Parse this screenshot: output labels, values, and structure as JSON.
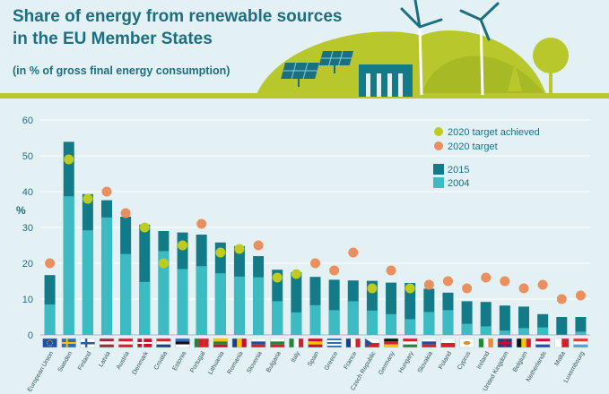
{
  "header": {
    "title_line1": "Share of energy from renewable sources",
    "title_line2": "in the EU Member States",
    "subtitle": "(in % of gross final energy consumption)"
  },
  "colors": {
    "bar_2015": "#137a87",
    "bar_2004": "#3cbcc2",
    "achieved": "#bfcb1d",
    "target": "#ec8f5e",
    "axis_text": "#1b6f80",
    "background": "#e3f1f4",
    "grid": "#ffffff"
  },
  "chart_data": {
    "type": "bar",
    "title": "Share of energy from renewable sources in the EU Member States",
    "subtitle": "(in % of gross final energy consumption)",
    "ylabel": "%",
    "xlabel": "",
    "ylim": [
      0,
      60
    ],
    "yticks": [
      0,
      10,
      20,
      30,
      40,
      50,
      60
    ],
    "grid": true,
    "legend_position": "top-right",
    "categories": [
      "European Union",
      "Sweden",
      "Finland",
      "Latvia",
      "Austria",
      "Denmark",
      "Croatia",
      "Estonia",
      "Portugal",
      "Lithuania",
      "Romania",
      "Slovenia",
      "Bulgaria",
      "Italy",
      "Spain",
      "Greece",
      "France",
      "Czech Republic",
      "Germany",
      "Hungary",
      "Slovakia",
      "Poland",
      "Cyprus",
      "Ireland",
      "United Kingdom",
      "Belgium",
      "Netherlands",
      "Malta",
      "Luxembourg"
    ],
    "series": [
      {
        "name": "2015",
        "values": [
          16.7,
          53.9,
          39.3,
          37.6,
          33.0,
          30.8,
          29.0,
          28.6,
          28.0,
          25.8,
          24.8,
          22.0,
          18.2,
          17.5,
          16.2,
          15.4,
          15.2,
          15.1,
          14.6,
          14.5,
          12.9,
          11.8,
          9.4,
          9.2,
          8.2,
          7.9,
          5.8,
          5.0,
          5.0
        ]
      },
      {
        "name": "2004",
        "values": [
          8.5,
          38.7,
          29.2,
          32.8,
          22.6,
          14.8,
          23.4,
          18.4,
          19.2,
          17.2,
          16.3,
          16.1,
          9.4,
          6.3,
          8.3,
          6.9,
          9.4,
          6.8,
          5.8,
          4.4,
          6.4,
          6.9,
          3.1,
          2.4,
          1.2,
          1.9,
          2.1,
          0.1,
          0.9
        ]
      },
      {
        "name": "2020 target achieved",
        "values": [
          null,
          49,
          38,
          null,
          null,
          30,
          20,
          25,
          null,
          23,
          24,
          null,
          16,
          17,
          null,
          null,
          null,
          13,
          null,
          13,
          null,
          null,
          null,
          null,
          null,
          null,
          null,
          null,
          null
        ]
      },
      {
        "name": "2020 target",
        "values": [
          20,
          null,
          null,
          40,
          34,
          null,
          null,
          null,
          31,
          null,
          null,
          25,
          null,
          null,
          20,
          18,
          23,
          null,
          18,
          null,
          14,
          15,
          13,
          16,
          15,
          13,
          14,
          10,
          11
        ]
      }
    ]
  },
  "flags": [
    {
      "name": "eu",
      "colors": [
        "#1f4fa0"
      ],
      "dir": "h"
    },
    {
      "name": "se",
      "colors": [
        "#2a6fb6"
      ],
      "dir": "h"
    },
    {
      "name": "fi",
      "colors": [
        "#ffffff"
      ],
      "dir": "h"
    },
    {
      "name": "lv",
      "colors": [
        "#9e2b38",
        "#ffffff",
        "#9e2b38"
      ],
      "dir": "h"
    },
    {
      "name": "at",
      "colors": [
        "#d81e2c",
        "#ffffff",
        "#d81e2c"
      ],
      "dir": "h"
    },
    {
      "name": "dk",
      "colors": [
        "#c8102e"
      ],
      "dir": "h"
    },
    {
      "name": "hr",
      "colors": [
        "#d8232a",
        "#ffffff",
        "#1f3c8a"
      ],
      "dir": "h"
    },
    {
      "name": "ee",
      "colors": [
        "#2a6fb6",
        "#111111",
        "#ffffff"
      ],
      "dir": "h"
    },
    {
      "name": "pt",
      "colors": [
        "#1a8a3a",
        "#d81e2c",
        "#d81e2c"
      ],
      "dir": "v"
    },
    {
      "name": "lt",
      "colors": [
        "#f7c400",
        "#1a8a3a",
        "#c8102e"
      ],
      "dir": "h"
    },
    {
      "name": "ro",
      "colors": [
        "#1f3c8a",
        "#f7c400",
        "#c8102e"
      ],
      "dir": "v"
    },
    {
      "name": "si",
      "colors": [
        "#ffffff",
        "#1f4fa0",
        "#d81e2c"
      ],
      "dir": "h"
    },
    {
      "name": "bg",
      "colors": [
        "#ffffff",
        "#1a8a3a",
        "#d81e2c"
      ],
      "dir": "h"
    },
    {
      "name": "it",
      "colors": [
        "#1a8a3a",
        "#ffffff",
        "#d81e2c"
      ],
      "dir": "v"
    },
    {
      "name": "es",
      "colors": [
        "#c8102e",
        "#f7c400",
        "#c8102e"
      ],
      "dir": "h"
    },
    {
      "name": "gr",
      "colors": [
        "#2a6fb6",
        "#ffffff",
        "#2a6fb6",
        "#ffffff",
        "#2a6fb6"
      ],
      "dir": "h"
    },
    {
      "name": "fr",
      "colors": [
        "#1f3c8a",
        "#ffffff",
        "#d81e2c"
      ],
      "dir": "v"
    },
    {
      "name": "cz",
      "colors": [
        "#ffffff",
        "#d81e2c"
      ],
      "dir": "h"
    },
    {
      "name": "de",
      "colors": [
        "#111111",
        "#d81e2c",
        "#f7c400"
      ],
      "dir": "h"
    },
    {
      "name": "hu",
      "colors": [
        "#d81e2c",
        "#ffffff",
        "#1a8a3a"
      ],
      "dir": "h"
    },
    {
      "name": "sk",
      "colors": [
        "#ffffff",
        "#1f4fa0",
        "#d81e2c"
      ],
      "dir": "h"
    },
    {
      "name": "pl",
      "colors": [
        "#ffffff",
        "#d81e2c"
      ],
      "dir": "h"
    },
    {
      "name": "cy",
      "colors": [
        "#ffffff"
      ],
      "dir": "h"
    },
    {
      "name": "ie",
      "colors": [
        "#1a8a3a",
        "#ffffff",
        "#f08a24"
      ],
      "dir": "v"
    },
    {
      "name": "uk",
      "colors": [
        "#1f3c8a"
      ],
      "dir": "h"
    },
    {
      "name": "be",
      "colors": [
        "#111111",
        "#f7c400",
        "#d81e2c"
      ],
      "dir": "v"
    },
    {
      "name": "nl",
      "colors": [
        "#c8102e",
        "#ffffff",
        "#1f4fa0"
      ],
      "dir": "h"
    },
    {
      "name": "mt",
      "colors": [
        "#ffffff",
        "#d81e2c"
      ],
      "dir": "v"
    },
    {
      "name": "lu",
      "colors": [
        "#e8343a",
        "#ffffff",
        "#4aa3df"
      ],
      "dir": "h"
    }
  ]
}
